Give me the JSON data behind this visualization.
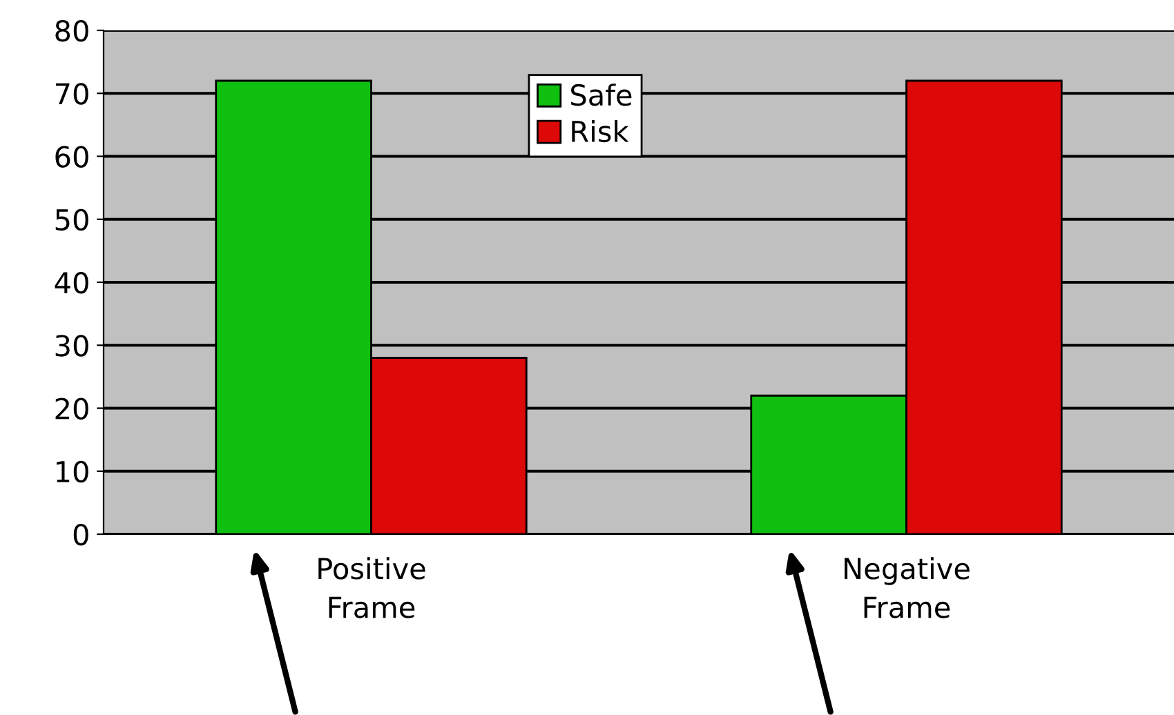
{
  "chart_data": {
    "type": "bar",
    "categories": [
      "Positive\nFrame",
      "Negative\nFrame"
    ],
    "series": [
      {
        "name": "Safe",
        "color": "#10c010",
        "values": [
          72,
          22
        ]
      },
      {
        "name": "Risk",
        "color": "#dd0808",
        "values": [
          28,
          72
        ]
      }
    ],
    "ylim": [
      0,
      80
    ],
    "yticks": [
      0,
      10,
      20,
      30,
      40,
      50,
      60,
      70,
      80
    ],
    "grid": "y",
    "legend": "top"
  }
}
